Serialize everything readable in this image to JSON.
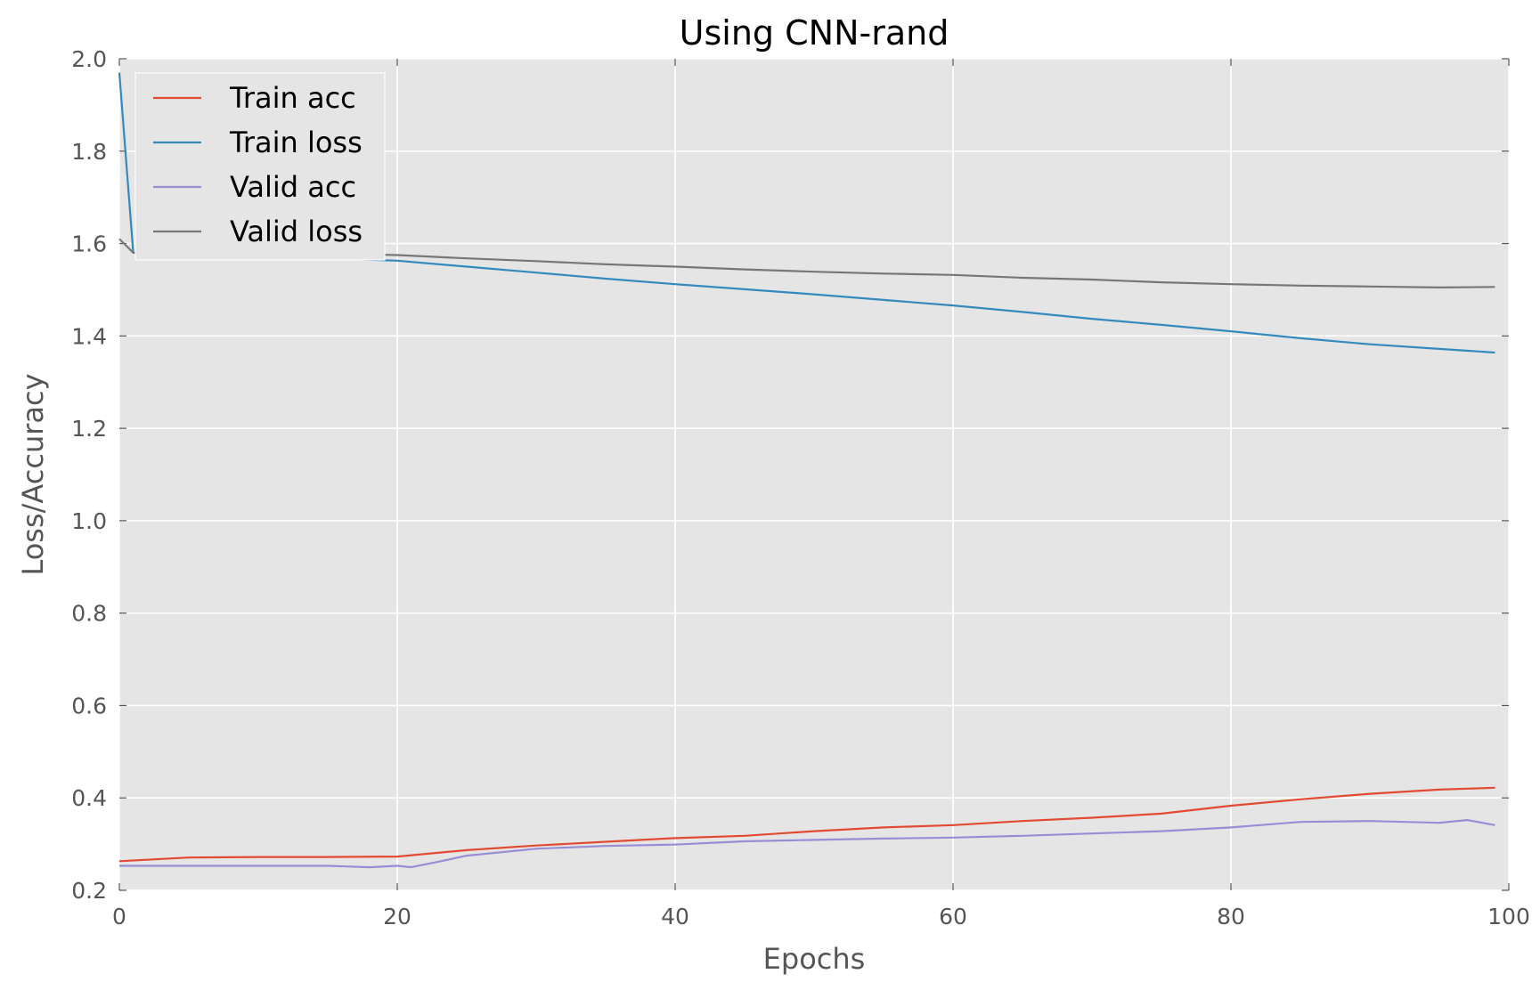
{
  "chart_data": {
    "type": "line",
    "title": "Using CNN-rand",
    "xlabel": "Epochs",
    "ylabel": "Loss/Accuracy",
    "xlim": [
      0,
      100
    ],
    "ylim": [
      0.2,
      2.0
    ],
    "xticks": [
      0,
      20,
      40,
      60,
      80,
      100
    ],
    "yticks": [
      0.2,
      0.4,
      0.6,
      0.8,
      1.0,
      1.2,
      1.4,
      1.6,
      1.8,
      2.0
    ],
    "grid": true,
    "legend_position": "top-left",
    "series": [
      {
        "name": "Train acc",
        "color": "#e24a33",
        "x": [
          0,
          5,
          10,
          15,
          20,
          25,
          30,
          35,
          40,
          45,
          50,
          55,
          60,
          65,
          70,
          75,
          80,
          85,
          90,
          95,
          99
        ],
        "values": [
          0.263,
          0.271,
          0.272,
          0.272,
          0.273,
          0.287,
          0.297,
          0.305,
          0.313,
          0.318,
          0.328,
          0.336,
          0.341,
          0.35,
          0.357,
          0.366,
          0.383,
          0.397,
          0.409,
          0.418,
          0.422
        ]
      },
      {
        "name": "Train loss",
        "color": "#348abd",
        "x": [
          0,
          1,
          5,
          10,
          15,
          20,
          25,
          30,
          35,
          40,
          45,
          50,
          55,
          60,
          65,
          70,
          75,
          80,
          85,
          90,
          95,
          99
        ],
        "values": [
          1.97,
          1.58,
          1.576,
          1.572,
          1.568,
          1.563,
          1.55,
          1.537,
          1.524,
          1.512,
          1.501,
          1.49,
          1.478,
          1.466,
          1.452,
          1.437,
          1.424,
          1.41,
          1.395,
          1.382,
          1.372,
          1.364
        ]
      },
      {
        "name": "Valid acc",
        "color": "#988ed5",
        "x": [
          0,
          5,
          10,
          15,
          18,
          20,
          21,
          23,
          25,
          30,
          35,
          40,
          45,
          50,
          55,
          60,
          65,
          70,
          75,
          80,
          85,
          90,
          95,
          97,
          99
        ],
        "values": [
          0.253,
          0.253,
          0.253,
          0.253,
          0.25,
          0.253,
          0.25,
          0.262,
          0.275,
          0.29,
          0.296,
          0.299,
          0.306,
          0.309,
          0.312,
          0.314,
          0.318,
          0.323,
          0.328,
          0.336,
          0.348,
          0.35,
          0.346,
          0.352,
          0.341
        ]
      },
      {
        "name": "Valid loss",
        "color": "#777777",
        "x": [
          0,
          1,
          5,
          10,
          15,
          20,
          25,
          30,
          35,
          40,
          45,
          50,
          55,
          60,
          65,
          70,
          75,
          80,
          85,
          90,
          95,
          99
        ],
        "values": [
          1.61,
          1.58,
          1.585,
          1.581,
          1.578,
          1.575,
          1.568,
          1.562,
          1.555,
          1.55,
          1.544,
          1.539,
          1.535,
          1.532,
          1.526,
          1.522,
          1.516,
          1.512,
          1.509,
          1.507,
          1.505,
          1.506
        ]
      }
    ]
  }
}
